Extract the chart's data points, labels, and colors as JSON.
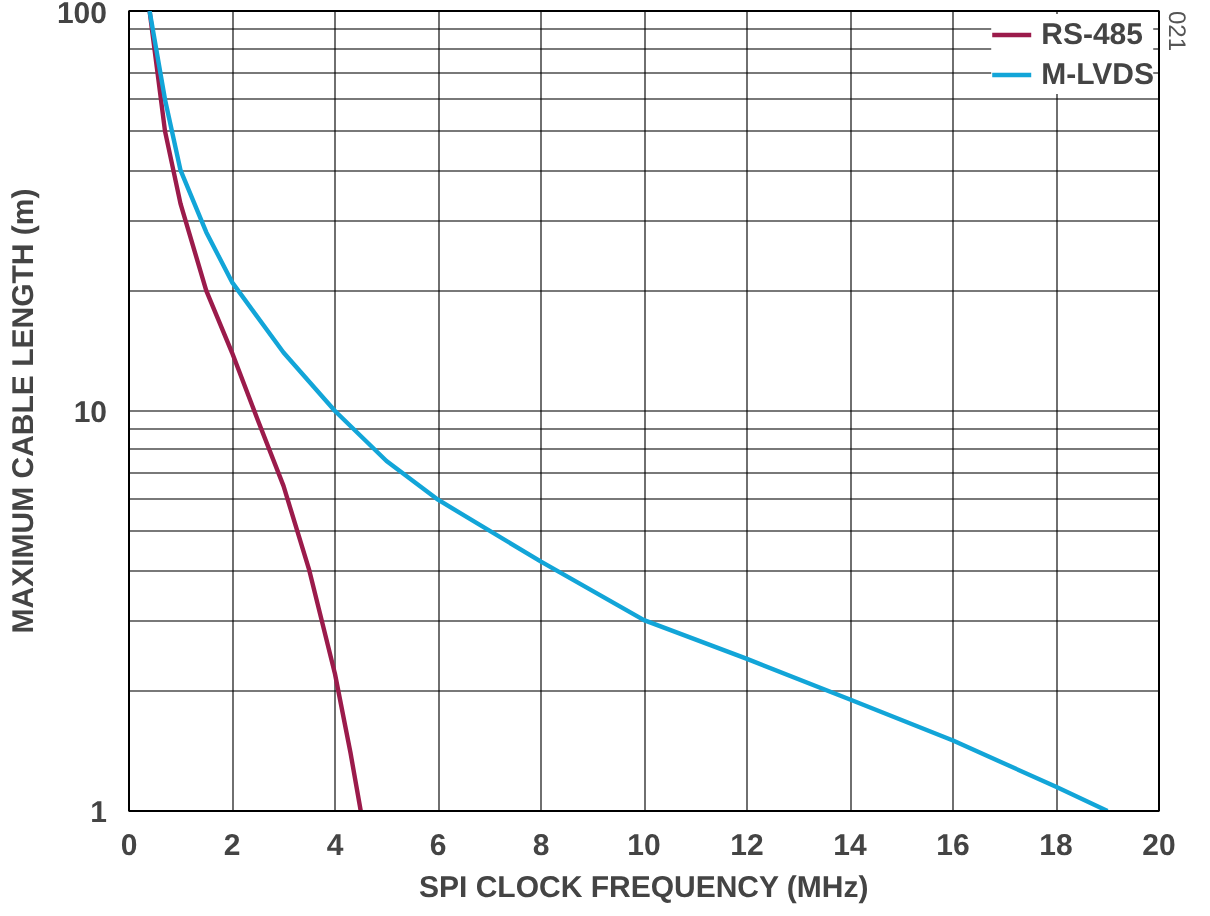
{
  "chart_data": {
    "type": "line",
    "xlabel": "SPI CLOCK FREQUENCY (MHz)",
    "ylabel": "MAXIMUM CABLE LENGTH (m)",
    "annotations": [
      "021"
    ],
    "xlim": [
      0,
      20
    ],
    "xticks": [
      0,
      2,
      4,
      6,
      8,
      10,
      12,
      14,
      16,
      18,
      20
    ],
    "ylim": [
      1,
      100
    ],
    "log": "y",
    "yticks": [
      1,
      {
        "value": 2,
        "label": null
      },
      {
        "value": 3,
        "label": null
      },
      {
        "value": 4,
        "label": null
      },
      {
        "value": 5,
        "label": null
      },
      {
        "value": 6,
        "label": null
      },
      {
        "value": 7,
        "label": null
      },
      {
        "value": 8,
        "label": null
      },
      {
        "value": 9,
        "label": null
      },
      10,
      {
        "value": 20,
        "label": null
      },
      {
        "value": 30,
        "label": null
      },
      {
        "value": 40,
        "label": null
      },
      {
        "value": 50,
        "label": null
      },
      {
        "value": 60,
        "label": null
      },
      {
        "value": 70,
        "label": null
      },
      {
        "value": 80,
        "label": null
      },
      {
        "value": 90,
        "label": null
      },
      100
    ],
    "grid": true,
    "legend": "top right",
    "marker": "none",
    "line_style": "solid",
    "series": [
      {
        "name": "RS-485",
        "color": "#9b1b4b",
        "x": [
          0.4,
          0.7,
          1,
          1.5,
          2,
          2.5,
          3,
          3.5,
          4,
          4.3,
          4.5
        ],
        "values": [
          100,
          50,
          33,
          20,
          14,
          9.5,
          6.5,
          4,
          2.2,
          1.4,
          1
        ]
      },
      {
        "name": "M-LVDS",
        "color": "#12a5d8",
        "x": [
          0.4,
          0.7,
          1,
          1.5,
          2,
          3,
          4,
          5,
          6,
          8,
          10,
          12,
          14,
          16,
          18,
          19
        ],
        "values": [
          100,
          60,
          40,
          28,
          21,
          14,
          10,
          7.5,
          6,
          4.2,
          3,
          2.4,
          1.9,
          1.5,
          1.15,
          1
        ]
      }
    ]
  }
}
